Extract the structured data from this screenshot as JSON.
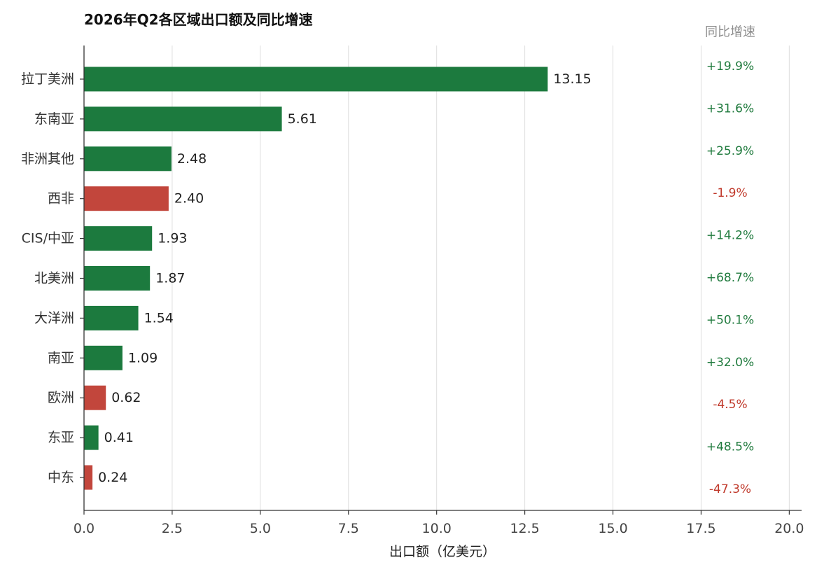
{
  "chart_data": {
    "type": "bar",
    "orientation": "horizontal",
    "title": "2026年Q2各区域出口额及同比增速",
    "xlabel": "出口额（亿美元）",
    "categories": [
      "拉丁美洲",
      "东南亚",
      "非洲其他",
      "西非",
      "CIS/中亚",
      "北美洲",
      "大洋洲",
      "南亚",
      "欧洲",
      "东亚",
      "中东"
    ],
    "values": [
      13.15,
      5.61,
      2.48,
      2.4,
      1.93,
      1.87,
      1.54,
      1.09,
      0.62,
      0.41,
      0.24
    ],
    "growth_header": "同比增速",
    "growth_labels": [
      "+19.9%",
      "+31.6%",
      "+25.9%",
      "-1.9%",
      "+14.2%",
      "+68.7%",
      "+50.1%",
      "+32.0%",
      "-4.5%",
      "+48.5%",
      "-47.3%"
    ],
    "xlim": [
      0,
      20.35
    ],
    "xticks": [
      0,
      2.5,
      5,
      7.5,
      10,
      12.5,
      15,
      17.5,
      20
    ],
    "grid": "x",
    "legend": "none",
    "colors": {
      "positive": "#1c7a3e",
      "negative": "#c2463c",
      "growth_positive": "#1f7a3d",
      "growth_negative": "#c0392b",
      "header": "#8c8c8c"
    }
  }
}
